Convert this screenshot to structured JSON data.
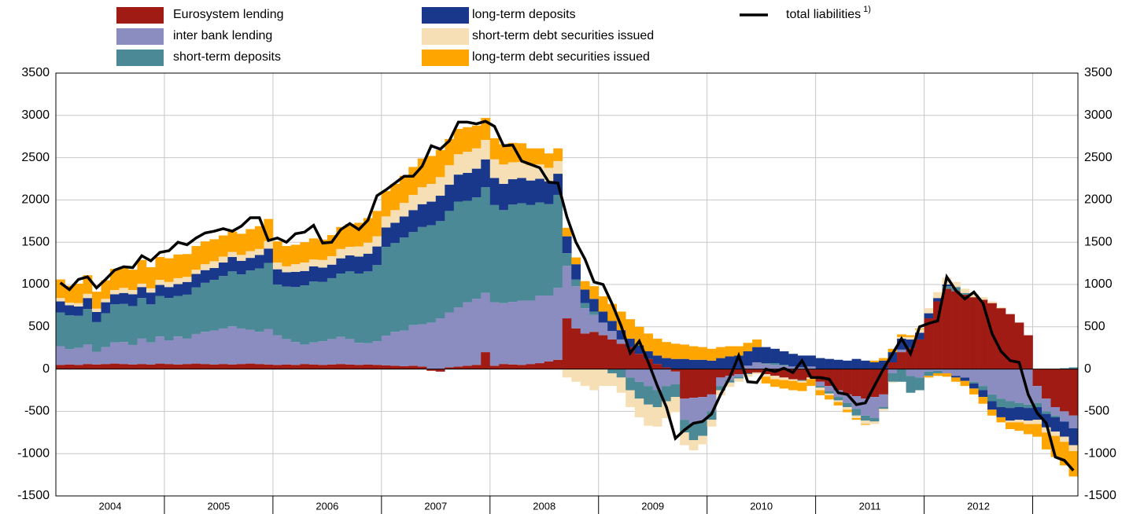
{
  "chart_data": {
    "type": "stacked-bar",
    "categories": [
      null,
      null,
      null,
      null,
      null,
      null,
      "2004",
      null,
      null,
      null,
      null,
      null,
      null,
      null,
      null,
      null,
      null,
      null,
      "2005",
      null,
      null,
      null,
      null,
      null,
      null,
      null,
      null,
      null,
      null,
      null,
      "2006",
      null,
      null,
      null,
      null,
      null,
      null,
      null,
      null,
      null,
      null,
      null,
      "2007",
      null,
      null,
      null,
      null,
      null,
      null,
      null,
      null,
      null,
      null,
      null,
      "2008",
      null,
      null,
      null,
      null,
      null,
      null,
      null,
      null,
      null,
      null,
      null,
      "2009",
      null,
      null,
      null,
      null,
      null,
      null,
      null,
      null,
      null,
      null,
      null,
      "2010",
      null,
      null,
      null,
      null,
      null,
      null,
      null,
      null,
      null,
      null,
      null,
      "2011",
      null,
      null,
      null,
      null,
      null,
      null,
      null,
      null,
      null,
      null,
      null,
      "2012",
      null,
      null,
      null,
      null,
      null,
      null,
      null,
      null,
      null,
      null
    ],
    "ylim": [
      -1500,
      3500
    ],
    "yticks": [
      -1500,
      -1000,
      -500,
      0,
      500,
      1000,
      1500,
      2000,
      2500,
      3000,
      3500
    ],
    "grid": true,
    "series": [
      {
        "name": "Eurosystem lending",
        "color": "#a01b14",
        "values": [
          50,
          55,
          50,
          60,
          55,
          60,
          65,
          60,
          55,
          60,
          55,
          65,
          60,
          55,
          60,
          65,
          60,
          55,
          60,
          55,
          60,
          65,
          60,
          55,
          50,
          55,
          50,
          60,
          55,
          50,
          55,
          60,
          55,
          50,
          55,
          50,
          45,
          40,
          35,
          40,
          30,
          -20,
          -30,
          20,
          30,
          40,
          50,
          200,
          40,
          60,
          55,
          50,
          60,
          70,
          90,
          110,
          600,
          480,
          420,
          440,
          400,
          350,
          300,
          260,
          180,
          120,
          60,
          20,
          -30,
          -350,
          -340,
          -330,
          -300,
          -100,
          -80,
          -60,
          -50,
          -40,
          -60,
          -80,
          -100,
          -120,
          -130,
          -100,
          -150,
          -200,
          -250,
          -300,
          -320,
          -350,
          -330,
          -300,
          80,
          200,
          250,
          350,
          600,
          800,
          950,
          920,
          880,
          850,
          820,
          780,
          720,
          650,
          550,
          400,
          -200,
          -350,
          -450,
          -500,
          -550
        ]
      },
      {
        "name": "inter bank lending",
        "color": "#8b8cc0",
        "values": [
          220,
          180,
          200,
          230,
          150,
          200,
          250,
          260,
          230,
          300,
          260,
          320,
          280,
          330,
          300,
          350,
          380,
          400,
          420,
          450,
          420,
          400,
          380,
          420,
          350,
          300,
          270,
          230,
          260,
          280,
          300,
          320,
          300,
          260,
          250,
          280,
          350,
          400,
          420,
          480,
          500,
          550,
          600,
          650,
          700,
          750,
          780,
          700,
          750,
          720,
          740,
          760,
          750,
          800,
          780,
          850,
          620,
          500,
          300,
          200,
          150,
          100,
          50,
          -100,
          -150,
          -200,
          -250,
          -200,
          -150,
          -250,
          -300,
          -280,
          -200,
          -100,
          -50,
          -30,
          40,
          80,
          60,
          50,
          40,
          30,
          20,
          30,
          -50,
          -60,
          -80,
          -100,
          -150,
          -200,
          -250,
          -150,
          -50,
          30,
          -80,
          -100,
          -30,
          -20,
          -50,
          -80,
          -100,
          -150,
          -200,
          -300,
          -350,
          -380,
          -400,
          -420,
          -200,
          -150,
          -100,
          -120,
          -150
        ]
      },
      {
        "name": "short-term deposits",
        "color": "#4a8995",
        "values": [
          400,
          400,
          380,
          420,
          350,
          400,
          450,
          450,
          460,
          480,
          450,
          480,
          500,
          480,
          520,
          550,
          580,
          600,
          620,
          650,
          640,
          700,
          750,
          780,
          600,
          620,
          650,
          700,
          720,
          700,
          720,
          750,
          800,
          820,
          850,
          900,
          1050,
          1050,
          1100,
          1100,
          1150,
          1150,
          1150,
          1200,
          1250,
          1200,
          1200,
          1250,
          1150,
          1100,
          1150,
          1150,
          1130,
          1100,
          1080,
          1100,
          150,
          80,
          60,
          40,
          0,
          -50,
          -100,
          -150,
          -200,
          -220,
          -200,
          -180,
          -150,
          -150,
          -200,
          -180,
          -100,
          -50,
          -30,
          -20,
          -10,
          0,
          10,
          20,
          10,
          0,
          -10,
          0,
          -20,
          -30,
          -40,
          -50,
          -80,
          -60,
          -40,
          -20,
          -100,
          -150,
          -200,
          -150,
          -50,
          -30,
          30,
          50,
          20,
          -20,
          -50,
          -80,
          -100,
          -80,
          -50,
          -40,
          -50,
          -30,
          -20,
          10,
          20
        ]
      },
      {
        "name": "long-term deposits",
        "color": "#19388b",
        "values": [
          130,
          120,
          110,
          130,
          120,
          130,
          120,
          130,
          140,
          130,
          140,
          130,
          130,
          140,
          150,
          160,
          150,
          140,
          160,
          170,
          160,
          150,
          160,
          170,
          180,
          170,
          180,
          170,
          180,
          170,
          160,
          180,
          190,
          200,
          210,
          220,
          230,
          240,
          250,
          260,
          270,
          280,
          300,
          310,
          320,
          330,
          340,
          330,
          320,
          310,
          300,
          300,
          290,
          280,
          270,
          250,
          200,
          180,
          160,
          150,
          130,
          120,
          110,
          100,
          100,
          90,
          100,
          110,
          120,
          120,
          110,
          110,
          100,
          130,
          150,
          160,
          170,
          180,
          190,
          170,
          160,
          150,
          140,
          130,
          130,
          120,
          110,
          100,
          120,
          100,
          80,
          100,
          120,
          130,
          100,
          80,
          60,
          40,
          20,
          -20,
          -40,
          -60,
          -80,
          -100,
          -120,
          -150,
          -150,
          -150,
          -150,
          -160,
          -170,
          -180,
          -200
        ]
      },
      {
        "name": "short-term debt securities issued",
        "color": "#f6dfb5",
        "values": [
          40,
          30,
          40,
          50,
          40,
          40,
          50,
          60,
          50,
          40,
          50,
          60,
          60,
          70,
          60,
          50,
          70,
          80,
          70,
          60,
          70,
          80,
          70,
          90,
          80,
          70,
          90,
          100,
          80,
          90,
          100,
          110,
          100,
          120,
          130,
          120,
          130,
          150,
          160,
          180,
          200,
          210,
          220,
          230,
          240,
          250,
          240,
          230,
          220,
          230,
          200,
          190,
          180,
          170,
          160,
          150,
          -100,
          -150,
          -200,
          -250,
          -200,
          -150,
          -180,
          -200,
          -220,
          -250,
          -230,
          -200,
          -180,
          -150,
          -120,
          -100,
          -80,
          -60,
          -50,
          -40,
          -30,
          -20,
          -30,
          -40,
          -30,
          -20,
          -20,
          -20,
          -30,
          -20,
          -20,
          -30,
          -30,
          -40,
          -30,
          -20,
          -10,
          20,
          30,
          40,
          60,
          70,
          80,
          60,
          50,
          40,
          30,
          20,
          10,
          -20,
          -30,
          -40,
          -50,
          -60,
          -50,
          -60,
          -70
        ]
      },
      {
        "name": "long-term debt securities issued",
        "color": "#ffa500",
        "values": [
          220,
          200,
          230,
          220,
          200,
          220,
          250,
          250,
          240,
          280,
          250,
          270,
          280,
          280,
          270,
          280,
          270,
          260,
          250,
          240,
          250,
          260,
          270,
          260,
          250,
          240,
          230,
          240,
          250,
          240,
          250,
          260,
          270,
          280,
          290,
          300,
          300,
          310,
          320,
          330,
          340,
          330,
          320,
          310,
          300,
          290,
          270,
          260,
          250,
          240,
          230,
          220,
          200,
          190,
          170,
          150,
          100,
          80,
          100,
          150,
          180,
          200,
          220,
          230,
          220,
          210,
          200,
          190,
          180,
          170,
          160,
          150,
          140,
          130,
          120,
          110,
          100,
          90,
          -80,
          -90,
          -100,
          -110,
          -100,
          -80,
          -60,
          -50,
          -40,
          -30,
          -20,
          -10,
          20,
          30,
          40,
          30,
          20,
          10,
          -20,
          -30,
          -40,
          -50,
          -60,
          -70,
          -80,
          -70,
          -60,
          -80,
          -100,
          -120,
          -150,
          -200,
          -250,
          -280,
          -300
        ]
      }
    ],
    "line": {
      "name": "total liabilities",
      "note": "1)",
      "color": "#000000",
      "values": [
        1020,
        940,
        1060,
        1090,
        960,
        1060,
        1170,
        1210,
        1200,
        1340,
        1280,
        1380,
        1400,
        1500,
        1470,
        1550,
        1610,
        1630,
        1660,
        1630,
        1690,
        1790,
        1790,
        1520,
        1550,
        1500,
        1600,
        1620,
        1700,
        1490,
        1500,
        1650,
        1720,
        1650,
        1760,
        2050,
        2120,
        2200,
        2280,
        2280,
        2400,
        2640,
        2600,
        2700,
        2920,
        2920,
        2900,
        2930,
        2870,
        2640,
        2650,
        2460,
        2420,
        2380,
        2210,
        2200,
        1800,
        1500,
        1300,
        1030,
        1000,
        770,
        510,
        190,
        330,
        80,
        -200,
        -450,
        -820,
        -720,
        -640,
        -620,
        -530,
        -300,
        -100,
        160,
        -150,
        -160,
        0,
        -30,
        10,
        -40,
        100,
        -100,
        -100,
        -120,
        -280,
        -300,
        -420,
        -400,
        -200,
        0,
        180,
        360,
        180,
        500,
        540,
        570,
        1090,
        930,
        830,
        910,
        780,
        420,
        210,
        100,
        80,
        -300,
        -520,
        -640,
        -1040,
        -1080,
        -1200
      ]
    }
  }
}
